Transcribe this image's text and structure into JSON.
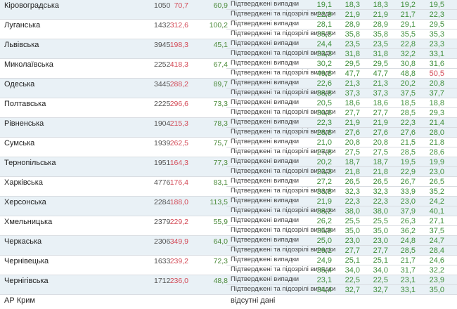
{
  "table": {
    "series_label_confirmed": "Підтверджені випадки",
    "series_label_suspected": "Підтверджені та підозрілі випадки",
    "rows": [
      {
        "region": "Кіровоградська",
        "population": "1050",
        "incidence": "70,7",
        "rate": "60,9",
        "confirmed": [
          "19,1",
          "18,3",
          "18,3",
          "19,2",
          "19,5"
        ],
        "suspected": [
          "22,9",
          "21,9",
          "21,9",
          "21,7",
          "22,3"
        ]
      },
      {
        "region": "Луганська",
        "population": "1432",
        "incidence": "312,6",
        "rate": "100,2",
        "confirmed": [
          "28,1",
          "28,9",
          "28,9",
          "29,1",
          "29,5"
        ],
        "suspected": [
          "35,5",
          "35,8",
          "35,8",
          "35,5",
          "35,3"
        ]
      },
      {
        "region": "Львівська",
        "population": "3945",
        "incidence": "198,3",
        "rate": "45,1",
        "confirmed": [
          "24,4",
          "23,5",
          "23,5",
          "22,8",
          "23,3"
        ],
        "suspected": [
          "33,3",
          "31,8",
          "31,8",
          "32,2",
          "33,1"
        ]
      },
      {
        "region": "Миколаївська",
        "population": "2252",
        "incidence": "418,3",
        "rate": "67,4",
        "confirmed": [
          "30,2",
          "29,5",
          "29,5",
          "30,8",
          "31,6"
        ],
        "suspected": [
          "49,6",
          "47,7",
          "47,7",
          "48,8",
          "50,5"
        ]
      },
      {
        "region": "Одеська",
        "population": "3445",
        "incidence": "288,2",
        "rate": "89,7",
        "confirmed": [
          "22,6",
          "21,3",
          "21,3",
          "20,2",
          "20,8"
        ],
        "suspected": [
          "38,8",
          "37,3",
          "37,3",
          "37,5",
          "37,7"
        ]
      },
      {
        "region": "Полтавська",
        "population": "2225",
        "incidence": "296,6",
        "rate": "73,3",
        "confirmed": [
          "20,5",
          "18,6",
          "18,6",
          "18,5",
          "18,8"
        ],
        "suspected": [
          "30,6",
          "27,7",
          "27,7",
          "28,5",
          "29,3"
        ]
      },
      {
        "region": "Рівненська",
        "population": "1904",
        "incidence": "215,3",
        "rate": "78,3",
        "confirmed": [
          "22,3",
          "21,9",
          "21,9",
          "22,3",
          "21,4"
        ],
        "suspected": [
          "28,6",
          "27,6",
          "27,6",
          "27,6",
          "28,0"
        ]
      },
      {
        "region": "Сумська",
        "population": "1939",
        "incidence": "262,5",
        "rate": "75,7",
        "confirmed": [
          "21,0",
          "20,8",
          "20,8",
          "21,5",
          "21,8"
        ],
        "suspected": [
          "27,8",
          "27,5",
          "27,5",
          "28,5",
          "28,6"
        ]
      },
      {
        "region": "Тернопільська",
        "population": "1951",
        "incidence": "164,3",
        "rate": "77,3",
        "confirmed": [
          "20,2",
          "18,7",
          "18,7",
          "19,5",
          "19,9"
        ],
        "suspected": [
          "23,3",
          "21,8",
          "21,8",
          "22,9",
          "23,0"
        ]
      },
      {
        "region": "Харківська",
        "population": "4776",
        "incidence": "176,4",
        "rate": "83,1",
        "confirmed": [
          "27,2",
          "26,5",
          "26,5",
          "26,7",
          "26,5"
        ],
        "suspected": [
          "33,8",
          "32,3",
          "32,3",
          "33,9",
          "35,2"
        ]
      },
      {
        "region": "Херсонська",
        "population": "2284",
        "incidence": "188,0",
        "rate": "113,5",
        "confirmed": [
          "21,9",
          "22,3",
          "22,3",
          "23,0",
          "24,2"
        ],
        "suspected": [
          "38,2",
          "38,0",
          "38,0",
          "37,9",
          "40,1"
        ]
      },
      {
        "region": "Хмельницька",
        "population": "2379",
        "incidence": "229,2",
        "rate": "55,9",
        "confirmed": [
          "26,2",
          "25,5",
          "25,5",
          "26,3",
          "27,1"
        ],
        "suspected": [
          "35,9",
          "35,0",
          "35,0",
          "36,2",
          "37,5"
        ]
      },
      {
        "region": "Черкаська",
        "population": "2306",
        "incidence": "349,9",
        "rate": "64,0",
        "confirmed": [
          "25,0",
          "23,0",
          "23,0",
          "24,8",
          "24,7"
        ],
        "suspected": [
          "29,1",
          "27,7",
          "27,7",
          "28,5",
          "28,4"
        ]
      },
      {
        "region": "Чернівецька",
        "population": "1633",
        "incidence": "239,2",
        "rate": "72,3",
        "confirmed": [
          "24,9",
          "25,1",
          "25,1",
          "21,7",
          "24,6"
        ],
        "suspected": [
          "35,4",
          "34,0",
          "34,0",
          "31,7",
          "32,2"
        ]
      },
      {
        "region": "Чернігівська",
        "population": "1712",
        "incidence": "236,0",
        "rate": "48,8",
        "confirmed": [
          "23,1",
          "22,5",
          "22,5",
          "23,1",
          "23,9"
        ],
        "suspected": [
          "34,4",
          "32,7",
          "32,7",
          "33,1",
          "35,0"
        ]
      }
    ],
    "crimea": {
      "region": "АР Крим",
      "note": "відсутні дані"
    }
  },
  "colors": {
    "confirmed_value": "#3e8e3a",
    "highlight_value": "#d34a57",
    "row_shade": "#e9f1f6"
  }
}
